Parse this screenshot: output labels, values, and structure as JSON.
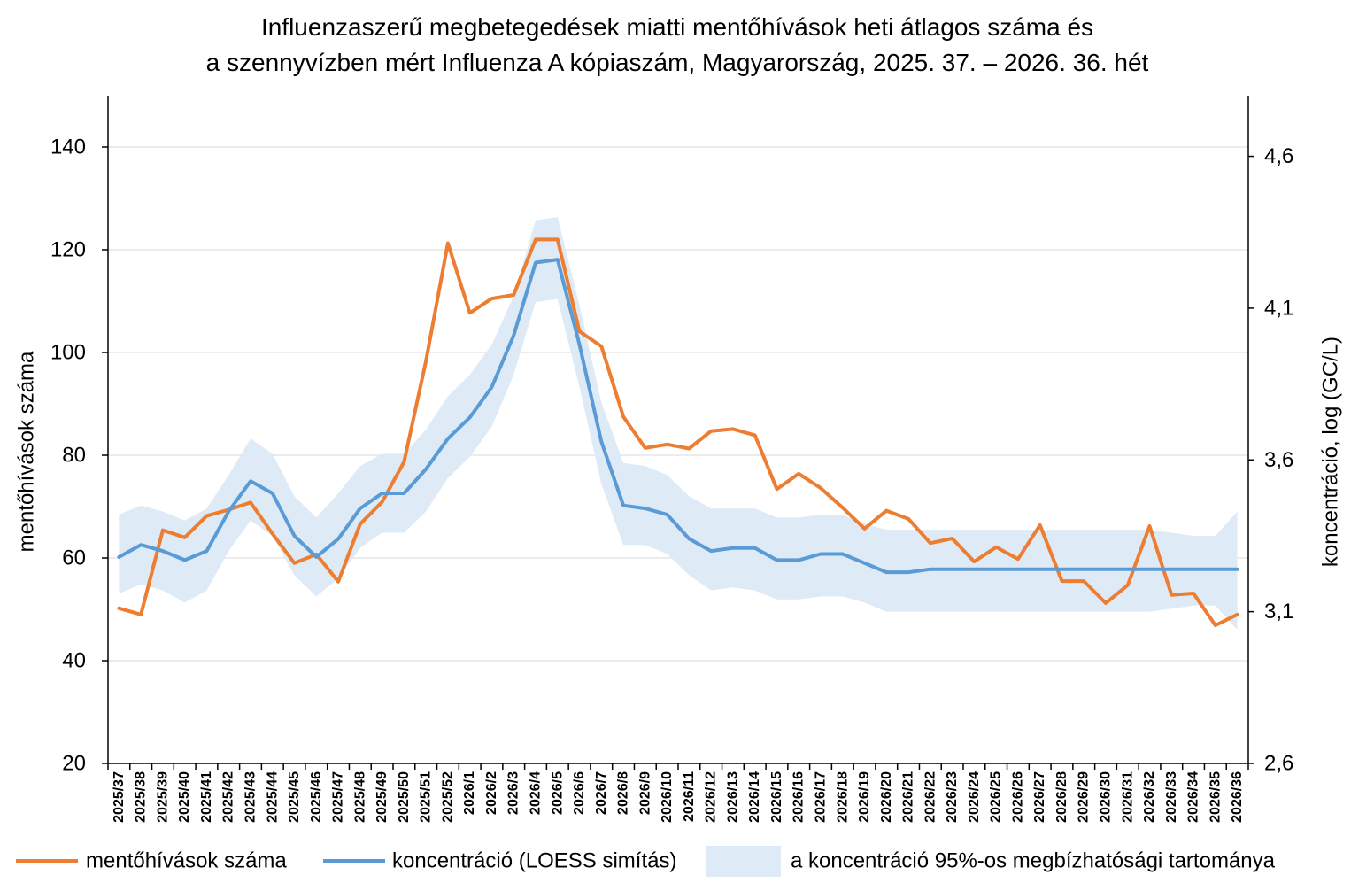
{
  "chart_data": {
    "type": "line",
    "title": [
      "Influenzaszerű megbetegedések miatti mentőhívások heti átlagos száma és",
      "a szennyvízben mért Influenza A kópiaszám, Magyarország, 2025. 37. – 2026. 36. hét"
    ],
    "categories": [
      "2025/37",
      "2025/38",
      "2025/39",
      "2025/40",
      "2025/41",
      "2025/42",
      "2025/43",
      "2025/44",
      "2025/45",
      "2025/46",
      "2025/47",
      "2025/48",
      "2025/49",
      "2025/50",
      "2025/51",
      "2025/52",
      "2026/1",
      "2026/2",
      "2026/3",
      "2026/4",
      "2026/5",
      "2026/6",
      "2026/7",
      "2026/8",
      "2026/9",
      "2026/10",
      "2026/11",
      "2026/12",
      "2026/13",
      "2026/14",
      "2026/15",
      "2026/16",
      "2026/17",
      "2026/18",
      "2026/19",
      "2026/20",
      "2026/21",
      "2026/22",
      "2026/23",
      "2026/24",
      "2026/25",
      "2026/26",
      "2026/27",
      "2026/28",
      "2026/29",
      "2026/30",
      "2026/31",
      "2026/32",
      "2026/33",
      "2026/34",
      "2026/35",
      "2026/36"
    ],
    "series": [
      {
        "name": "mentőhívások száma",
        "axis": "left",
        "color": "#ED7D31",
        "values": [
          50.2,
          49.0,
          65.4,
          64.0,
          68.2,
          69.4,
          70.8,
          64.7,
          59.0,
          60.7,
          55.4,
          66.6,
          70.9,
          78.7,
          98.4,
          121.3,
          107.7,
          110.5,
          111.2,
          122.0,
          122.0,
          104.1,
          101.2,
          87.5,
          81.4,
          82.1,
          81.3,
          84.7,
          85.1,
          83.9,
          73.4,
          76.4,
          73.6,
          69.8,
          65.7,
          69.2,
          67.6,
          62.9,
          63.8,
          59.3,
          62.1,
          59.8,
          66.4,
          55.5,
          55.5,
          51.2,
          54.7,
          66.2,
          52.8,
          53.1,
          46.9,
          49.0
        ]
      },
      {
        "name": "koncentráció (LOESS simítás)",
        "axis": "right",
        "color": "#5B9BD5",
        "values": [
          3.28,
          3.32,
          3.3,
          3.27,
          3.3,
          3.43,
          3.53,
          3.49,
          3.35,
          3.28,
          3.34,
          3.44,
          3.49,
          3.49,
          3.57,
          3.67,
          3.74,
          3.84,
          4.01,
          4.25,
          4.26,
          3.98,
          3.66,
          3.45,
          3.44,
          3.42,
          3.34,
          3.3,
          3.31,
          3.31,
          3.27,
          3.27,
          3.29,
          3.29,
          3.26,
          3.23,
          3.23,
          3.24,
          3.24,
          3.24,
          3.24,
          3.24,
          3.24,
          3.24,
          3.24,
          3.24,
          3.24,
          3.24,
          3.24,
          3.24,
          3.24,
          3.24
        ]
      }
    ],
    "band": {
      "name": "a koncentráció 95%-os megbízhatósági tartománya",
      "axis": "right",
      "color": "#DEEBF7",
      "upper": [
        3.42,
        3.45,
        3.43,
        3.4,
        3.44,
        3.55,
        3.67,
        3.62,
        3.48,
        3.41,
        3.49,
        3.58,
        3.62,
        3.62,
        3.7,
        3.81,
        3.88,
        3.98,
        4.14,
        4.39,
        4.4,
        4.11,
        3.79,
        3.59,
        3.58,
        3.55,
        3.48,
        3.44,
        3.44,
        3.44,
        3.41,
        3.41,
        3.42,
        3.42,
        3.39,
        3.37,
        3.37,
        3.37,
        3.37,
        3.37,
        3.37,
        3.37,
        3.37,
        3.37,
        3.37,
        3.37,
        3.37,
        3.37,
        3.36,
        3.35,
        3.35,
        3.43
      ],
      "lower": [
        3.16,
        3.19,
        3.17,
        3.13,
        3.17,
        3.3,
        3.4,
        3.35,
        3.22,
        3.15,
        3.21,
        3.31,
        3.36,
        3.36,
        3.43,
        3.54,
        3.61,
        3.71,
        3.88,
        4.12,
        4.13,
        3.84,
        3.52,
        3.32,
        3.32,
        3.29,
        3.22,
        3.17,
        3.18,
        3.17,
        3.14,
        3.14,
        3.15,
        3.15,
        3.13,
        3.1,
        3.1,
        3.1,
        3.1,
        3.1,
        3.1,
        3.1,
        3.1,
        3.1,
        3.1,
        3.1,
        3.1,
        3.1,
        3.11,
        3.12,
        3.12,
        3.04
      ]
    },
    "y_left": {
      "label": "mentőhívások száma",
      "ylim": [
        20,
        150
      ],
      "ticks": [
        20,
        40,
        60,
        80,
        100,
        120,
        140
      ],
      "tick_labels": [
        "20",
        "40",
        "60",
        "80",
        "100",
        "120",
        "140"
      ]
    },
    "y_right": {
      "label": "koncentráció, log (GC/L)",
      "ylim": [
        2.6,
        4.8
      ],
      "ticks": [
        2.6,
        3.1,
        3.6,
        4.1,
        4.6
      ],
      "tick_labels": [
        "2,6",
        "3,1",
        "3,6",
        "4,1",
        "4,6"
      ]
    },
    "grid": "horizontal",
    "legend": "bottom"
  }
}
